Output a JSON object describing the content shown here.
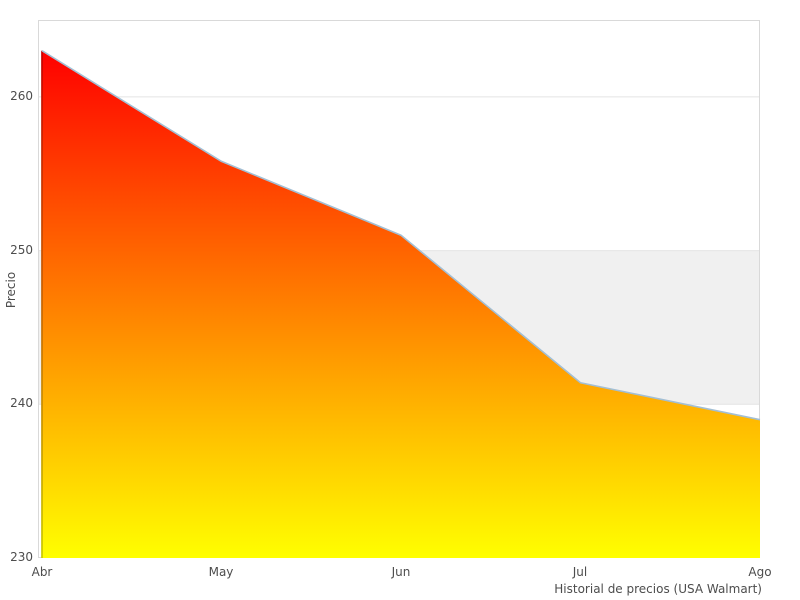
{
  "chart_data": {
    "type": "area",
    "caption": "Historial de precios (USA Walmart)",
    "ylabel": "Precio",
    "xlabel": "",
    "categories": [
      "Abr",
      "May",
      "Jun",
      "Jul",
      "Ago"
    ],
    "series": [
      {
        "name": "Precio",
        "values": [
          263,
          255.8,
          251,
          241.4,
          239
        ]
      }
    ],
    "yticks": [
      230,
      240,
      250,
      260
    ],
    "ylim": [
      230,
      265
    ],
    "grid": "horizontal",
    "legend": "none",
    "plot_band": {
      "from": 240,
      "to": 250,
      "color": "#f0f0f0"
    },
    "colors": {
      "gradient_top": "#ff0000",
      "gradient_bottom": "#ffff00",
      "line": "#a3bfd4",
      "edge_top": "#c40000",
      "edge_bottom": "#c9c900",
      "grid": "#e4e4e4",
      "border": "#d9d9d9",
      "text": "#4d4d4d",
      "background": "#ffffff"
    }
  }
}
